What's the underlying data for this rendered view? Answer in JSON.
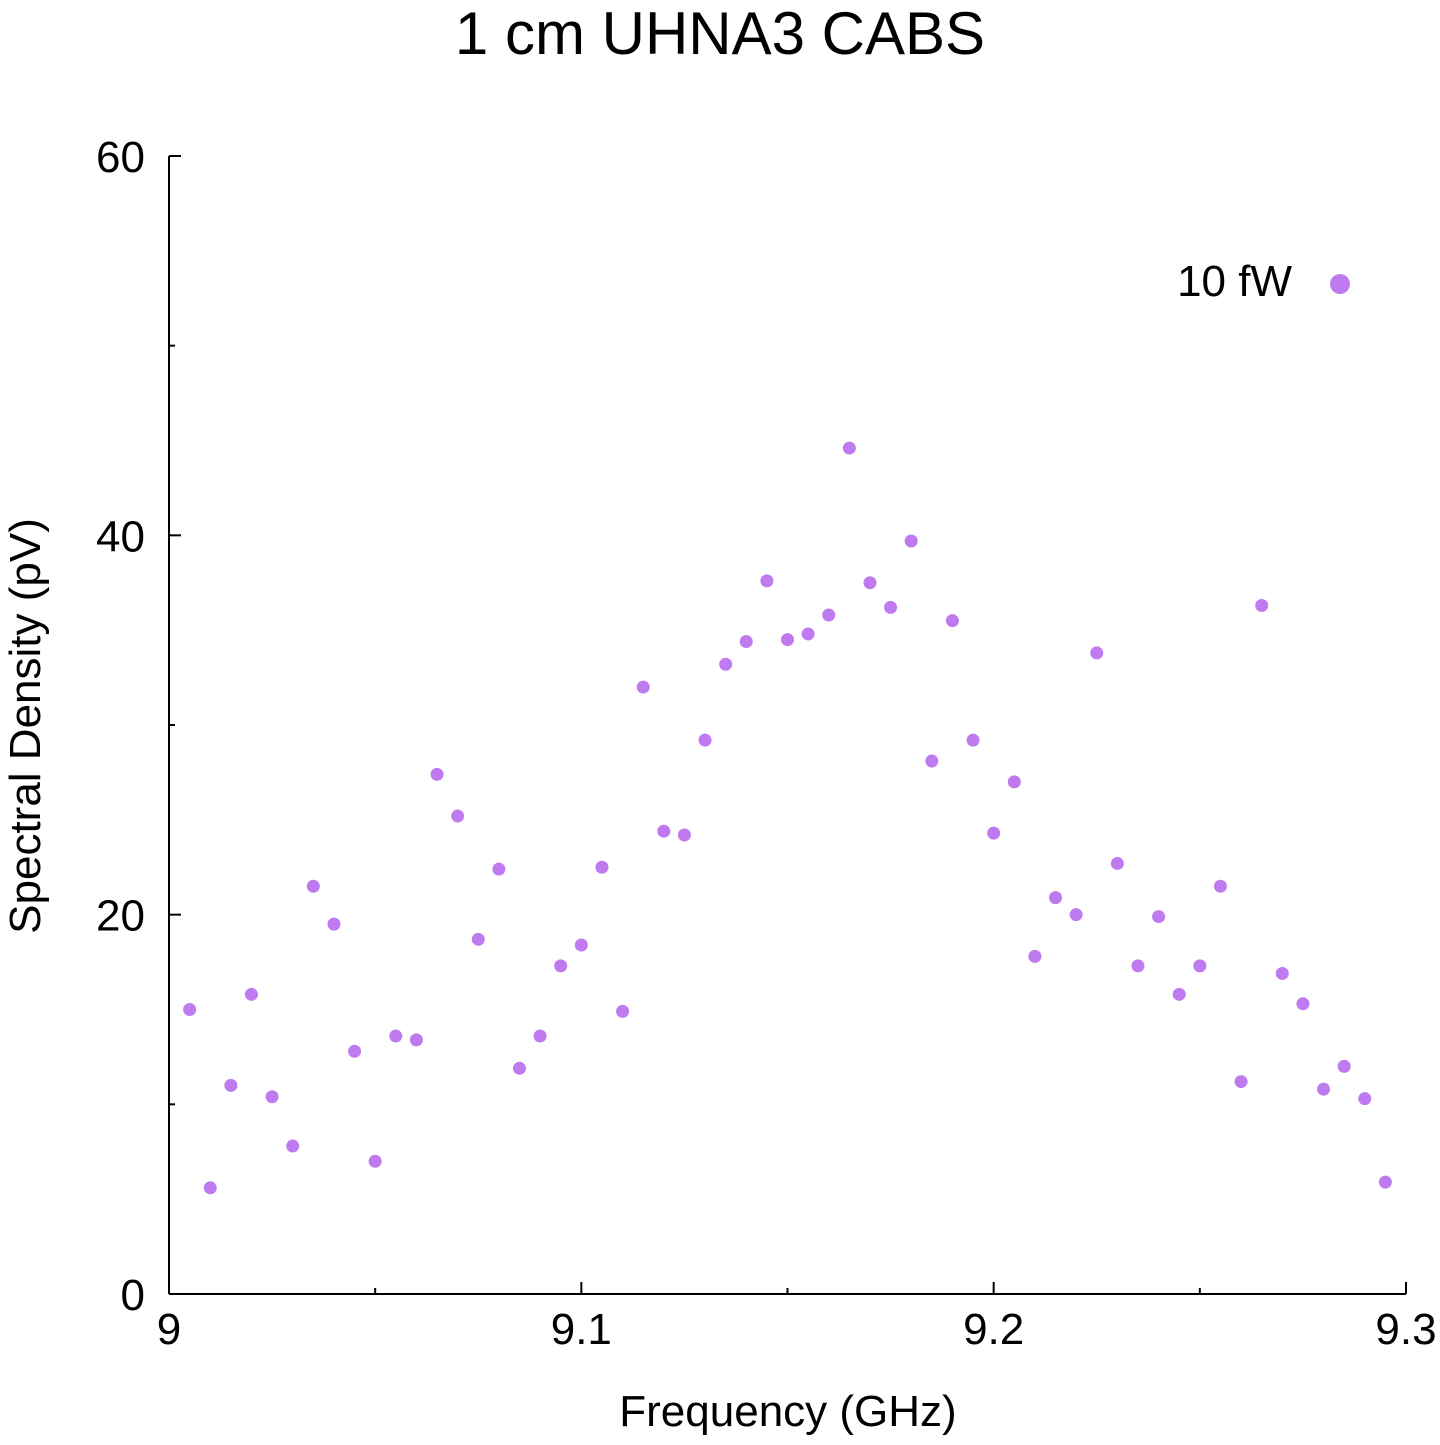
{
  "chart_data": {
    "type": "scatter",
    "title": "1 cm UHNA3 CABS",
    "xlabel": "Frequency (GHz)",
    "ylabel": "Spectral Density (pV)",
    "xlim": [
      9.0,
      9.3
    ],
    "ylim": [
      0,
      60
    ],
    "xticks": [
      9.0,
      9.1,
      9.2,
      9.3
    ],
    "xtick_labels": [
      "9",
      "9.1",
      "9.2",
      "9.3"
    ],
    "xminor": [
      9.05,
      9.15,
      9.25
    ],
    "yticks": [
      0,
      20,
      40,
      60
    ],
    "ytick_labels": [
      "0",
      "20",
      "40",
      "60"
    ],
    "yminor": [
      10,
      30,
      50
    ],
    "grid": false,
    "legend_position": "top-right",
    "series": [
      {
        "name": "10 fW",
        "color": "#bf7af0",
        "marker": "circle",
        "x": [
          9.005,
          9.01,
          9.015,
          9.02,
          9.025,
          9.03,
          9.035,
          9.04,
          9.045,
          9.05,
          9.055,
          9.06,
          9.065,
          9.07,
          9.075,
          9.08,
          9.085,
          9.09,
          9.095,
          9.1,
          9.105,
          9.11,
          9.115,
          9.12,
          9.125,
          9.13,
          9.135,
          9.14,
          9.145,
          9.15,
          9.155,
          9.16,
          9.165,
          9.17,
          9.175,
          9.18,
          9.185,
          9.19,
          9.195,
          9.2,
          9.205,
          9.21,
          9.215,
          9.22,
          9.225,
          9.23,
          9.235,
          9.24,
          9.245,
          9.25,
          9.255,
          9.26,
          9.265,
          9.27,
          9.275,
          9.28,
          9.285,
          9.29,
          9.295
        ],
        "y": [
          15.0,
          5.6,
          11.0,
          15.8,
          10.4,
          7.8,
          21.5,
          19.5,
          12.8,
          7.0,
          13.6,
          13.4,
          27.4,
          25.2,
          18.7,
          22.4,
          11.9,
          13.6,
          17.3,
          18.4,
          22.5,
          14.9,
          32.0,
          24.4,
          24.2,
          29.2,
          33.2,
          34.4,
          37.6,
          34.5,
          34.8,
          35.8,
          44.6,
          37.5,
          36.2,
          39.7,
          28.1,
          35.5,
          29.2,
          24.3,
          27.0,
          17.8,
          20.9,
          20.0,
          33.8,
          22.7,
          17.3,
          19.9,
          15.8,
          17.3,
          21.5,
          11.2,
          36.3,
          16.9,
          15.3,
          10.8,
          12.0,
          10.3,
          5.9
        ]
      }
    ]
  }
}
